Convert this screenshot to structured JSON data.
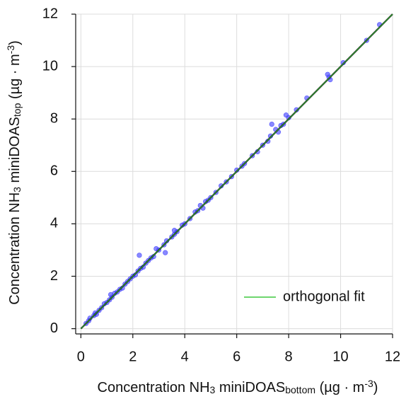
{
  "chart_data": {
    "type": "scatter",
    "xlabel": [
      {
        "text": "Concentration NH"
      },
      {
        "text": "3",
        "script": "sub"
      },
      {
        "text": " miniDOAS"
      },
      {
        "text": "bottom",
        "script": "sub"
      },
      {
        "text": " (µg · m"
      },
      {
        "text": "-3",
        "script": "super"
      },
      {
        "text": ")"
      }
    ],
    "ylabel": [
      {
        "text": "Concentration NH"
      },
      {
        "text": "3",
        "script": "sub"
      },
      {
        "text": " miniDOAS"
      },
      {
        "text": "top",
        "script": "sub"
      },
      {
        "text": " (µg · m"
      },
      {
        "text": "-3",
        "script": "super"
      },
      {
        "text": ")"
      }
    ],
    "xlim": [
      -0.2,
      12
    ],
    "ylim": [
      -0.2,
      12
    ],
    "xticks": [
      0,
      2,
      4,
      6,
      8,
      10,
      12
    ],
    "yticks": [
      0,
      2,
      4,
      6,
      8,
      10,
      12
    ],
    "grid": true,
    "legend": "lower right",
    "points": {
      "color": "#3b3bff",
      "x": [
        0.2,
        0.3,
        0.35,
        0.5,
        0.55,
        0.6,
        0.7,
        0.8,
        0.9,
        1.0,
        1.1,
        1.15,
        1.2,
        1.3,
        1.4,
        1.5,
        1.6,
        1.7,
        1.8,
        1.9,
        2.0,
        2.1,
        2.2,
        2.25,
        2.3,
        2.4,
        2.5,
        2.6,
        2.7,
        2.8,
        2.9,
        3.0,
        3.2,
        3.25,
        3.3,
        3.5,
        3.6,
        3.6,
        3.7,
        3.9,
        4.0,
        4.2,
        4.4,
        4.5,
        4.6,
        4.7,
        4.8,
        4.9,
        5.0,
        5.2,
        5.4,
        5.6,
        5.8,
        6.0,
        6.2,
        6.3,
        6.6,
        6.8,
        7.0,
        7.2,
        7.3,
        7.35,
        7.5,
        7.6,
        7.7,
        7.8,
        7.9,
        8.0,
        8.3,
        8.7,
        9.5,
        9.55,
        9.6,
        10.1,
        11.0,
        11.5
      ],
      "y": [
        0.2,
        0.3,
        0.4,
        0.5,
        0.6,
        0.55,
        0.7,
        0.8,
        0.95,
        1.0,
        1.1,
        1.3,
        1.2,
        1.35,
        1.4,
        1.5,
        1.55,
        1.7,
        1.8,
        1.9,
        2.0,
        2.05,
        2.2,
        2.8,
        2.3,
        2.35,
        2.5,
        2.6,
        2.7,
        2.75,
        3.05,
        3.0,
        3.2,
        2.9,
        3.35,
        3.5,
        3.75,
        3.6,
        3.7,
        3.95,
        4.0,
        4.2,
        4.45,
        4.5,
        4.7,
        4.6,
        4.85,
        4.9,
        5.0,
        5.2,
        5.45,
        5.6,
        5.8,
        6.05,
        6.2,
        6.3,
        6.6,
        6.75,
        7.0,
        7.15,
        7.35,
        7.8,
        7.6,
        7.5,
        7.75,
        7.8,
        8.15,
        8.05,
        8.35,
        8.8,
        9.7,
        9.6,
        9.5,
        10.15,
        11.0,
        11.6
      ]
    },
    "fit": {
      "name": "orthogonal fit",
      "color": "#3fc83f",
      "x": [
        0,
        12
      ],
      "y": [
        0,
        12
      ]
    }
  }
}
